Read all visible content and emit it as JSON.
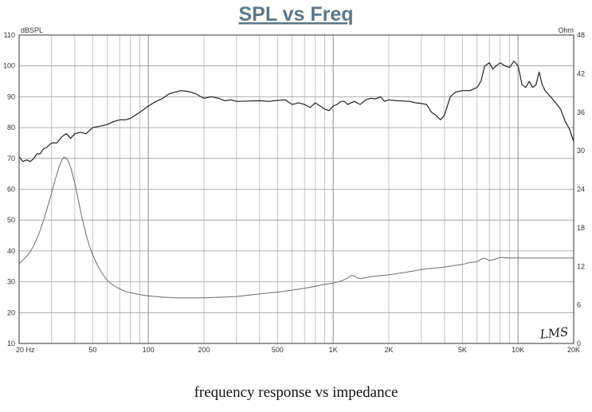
{
  "chart_data": {
    "type": "line",
    "title": "SPL vs Freq",
    "caption": "frequency response vs impedance",
    "logo": "LMS",
    "x_scale": "log",
    "xlim": [
      20,
      20000
    ],
    "x_ticks": [
      {
        "value": 20,
        "label": "20  Hz"
      },
      {
        "value": 50,
        "label": "50"
      },
      {
        "value": 100,
        "label": "100"
      },
      {
        "value": 200,
        "label": "200"
      },
      {
        "value": 500,
        "label": "500"
      },
      {
        "value": 1000,
        "label": "1K"
      },
      {
        "value": 2000,
        "label": "2K"
      },
      {
        "value": 5000,
        "label": "5K"
      },
      {
        "value": 10000,
        "label": "10K"
      },
      {
        "value": 20000,
        "label": "20K"
      }
    ],
    "y_left": {
      "unit": "dBSPL",
      "ylim": [
        10,
        110
      ],
      "ticks": [
        10,
        20,
        30,
        40,
        50,
        60,
        70,
        80,
        90,
        100,
        110
      ]
    },
    "y_right": {
      "unit": "Ohm",
      "ylim": [
        0,
        48
      ],
      "ticks": [
        0,
        6,
        12,
        18,
        24,
        30,
        36,
        42,
        48
      ]
    },
    "grid": true,
    "series": [
      {
        "axis": "left",
        "color": "#222222",
        "x": [
          20,
          21,
          22,
          23,
          24,
          25,
          26,
          27,
          28,
          30,
          32,
          34,
          36,
          38,
          40,
          43,
          46,
          50,
          55,
          60,
          65,
          70,
          75,
          80,
          85,
          90,
          95,
          100,
          110,
          120,
          130,
          140,
          150,
          160,
          170,
          180,
          190,
          200,
          220,
          240,
          260,
          280,
          300,
          350,
          400,
          450,
          500,
          550,
          600,
          650,
          700,
          750,
          800,
          850,
          900,
          950,
          1000,
          1050,
          1100,
          1150,
          1200,
          1300,
          1400,
          1500,
          1600,
          1700,
          1800,
          1900,
          2000,
          2200,
          2400,
          2600,
          2800,
          3000,
          3200,
          3400,
          3600,
          3800,
          4000,
          4300,
          4600,
          5000,
          5500,
          6000,
          6300,
          6600,
          7000,
          7300,
          7600,
          8000,
          8500,
          9000,
          9500,
          10000,
          10500,
          11000,
          11500,
          12000,
          12500,
          13000,
          13500,
          14000,
          15000,
          16000,
          17000,
          18000,
          19000,
          20000
        ],
        "values": [
          70.5,
          69,
          69.5,
          69,
          70,
          71.5,
          71.5,
          73,
          73.5,
          75,
          75,
          77,
          78,
          76.5,
          78,
          78.5,
          78,
          80,
          80.5,
          81,
          82,
          82.5,
          82.5,
          83,
          84,
          85,
          86,
          87,
          88.5,
          89.5,
          91,
          91.5,
          92,
          91.8,
          91.5,
          91,
          90.2,
          89.5,
          90,
          89.5,
          88.7,
          89,
          88.5,
          88.6,
          88.7,
          88.5,
          88.8,
          89,
          87.5,
          88,
          87.5,
          86.5,
          88,
          87,
          86,
          85.5,
          87,
          87.5,
          88.5,
          88.5,
          87.5,
          88.5,
          87.5,
          89,
          89.5,
          89.3,
          90,
          88.5,
          89,
          88.7,
          88.6,
          88.5,
          88,
          87.8,
          87.5,
          85,
          84,
          82.5,
          84,
          90,
          91.5,
          92,
          92,
          93,
          95,
          100,
          101,
          99,
          100,
          101,
          100,
          99.5,
          101.5,
          100,
          94,
          93,
          95,
          93,
          93.8,
          98,
          94,
          92,
          90,
          88,
          86,
          82,
          79.5,
          75.5
        ]
      },
      {
        "axis": "right",
        "color": "#6b6b6b",
        "x": [
          20,
          21,
          22,
          23,
          24,
          25,
          26,
          27,
          28,
          29,
          30,
          31,
          32,
          33,
          34,
          35,
          36,
          37,
          38,
          40,
          42,
          44,
          46,
          48,
          50,
          53,
          56,
          60,
          65,
          70,
          75,
          80,
          90,
          100,
          110,
          120,
          140,
          160,
          180,
          200,
          250,
          300,
          400,
          500,
          600,
          700,
          800,
          900,
          1000,
          1100,
          1200,
          1250,
          1300,
          1350,
          1400,
          1600,
          2000,
          2500,
          3000,
          4000,
          5000,
          5500,
          6000,
          6300,
          6600,
          7000,
          7500,
          8000,
          9000,
          10000,
          12000,
          15000,
          20000
        ],
        "values": [
          12.4,
          13,
          13.6,
          14.3,
          15.3,
          16.4,
          17.6,
          19,
          20.5,
          22,
          23.5,
          25,
          26.4,
          27.6,
          28.5,
          29,
          28.8,
          28.3,
          27.4,
          25,
          22,
          19.3,
          17,
          15.2,
          13.8,
          12.2,
          11,
          9.8,
          9,
          8.5,
          8.1,
          7.9,
          7.6,
          7.4,
          7.3,
          7.2,
          7.1,
          7.1,
          7.1,
          7.1,
          7.2,
          7.3,
          7.7,
          8,
          8.3,
          8.6,
          8.9,
          9.2,
          9.4,
          9.7,
          10.2,
          10.6,
          10.5,
          10.2,
          10.1,
          10.4,
          10.7,
          11.1,
          11.5,
          11.9,
          12.3,
          12.6,
          12.7,
          13.1,
          13.3,
          12.9,
          13.1,
          13.4,
          13.3,
          13.3,
          13.3,
          13.3,
          13.3
        ]
      }
    ]
  }
}
